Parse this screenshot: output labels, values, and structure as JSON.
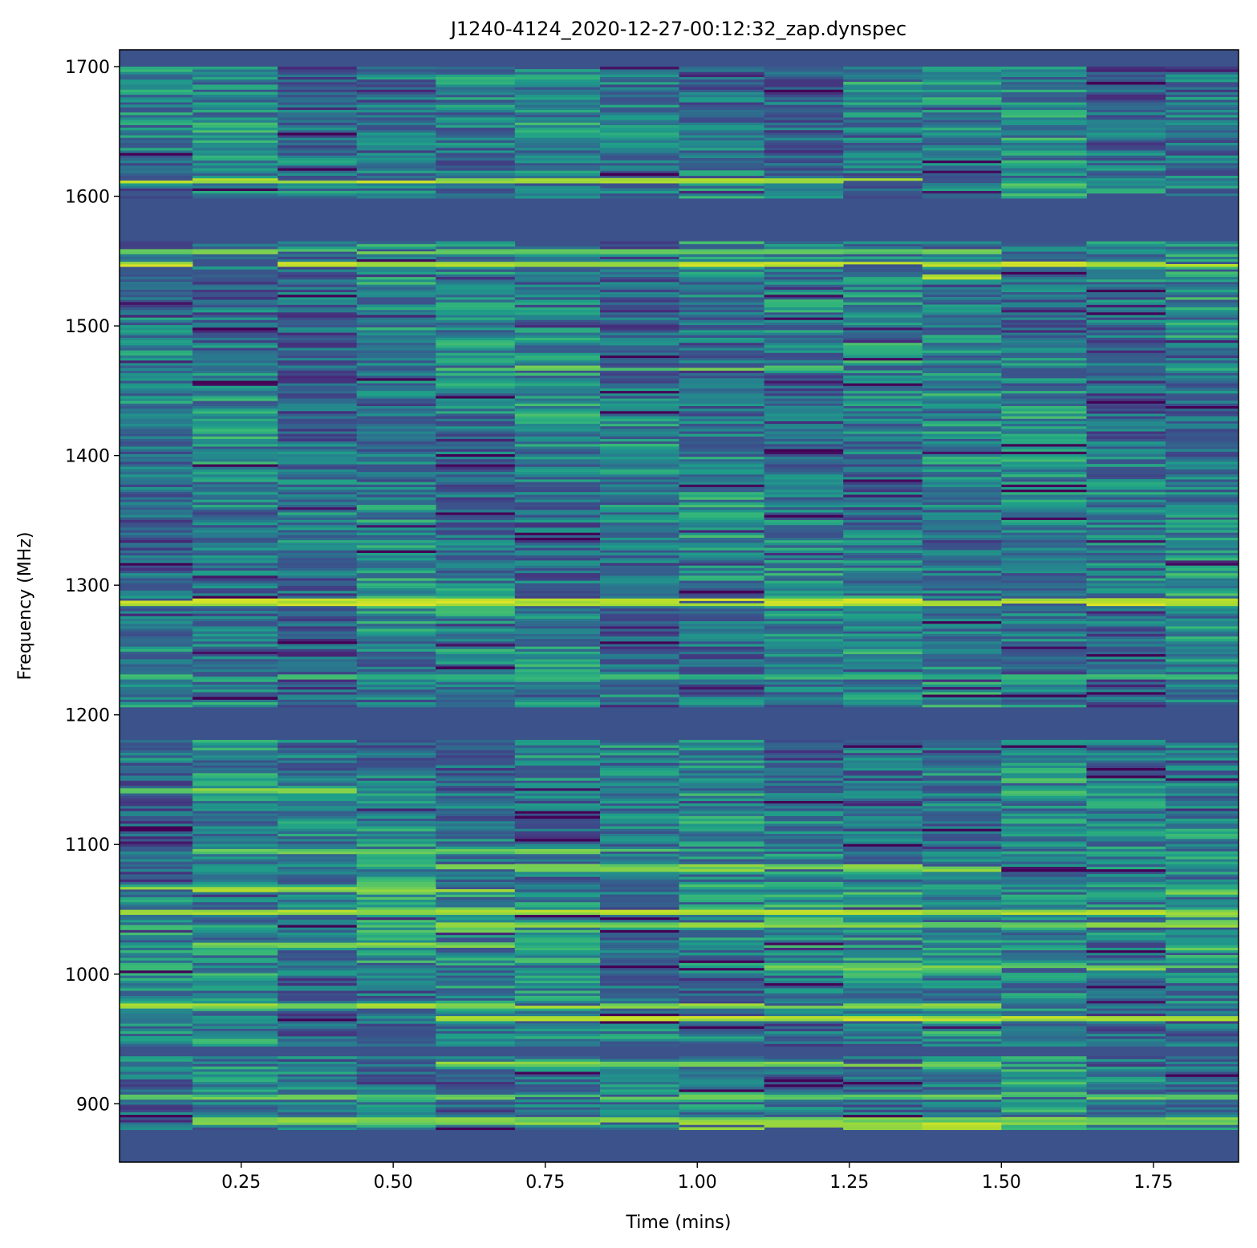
{
  "chart_data": {
    "type": "heatmap",
    "title": "J1240-4124_2020-12-27-00:12:32_zap.dynspec",
    "xlabel": "Time (mins)",
    "ylabel": "Frequency (MHz)",
    "xlim": [
      0.05,
      1.89
    ],
    "ylim": [
      855,
      1713
    ],
    "x_ticks": [
      0.25,
      0.5,
      0.75,
      1.0,
      1.25,
      1.5,
      1.75
    ],
    "x_tick_labels": [
      "0.25",
      "0.50",
      "0.75",
      "1.00",
      "1.25",
      "1.50",
      "1.75"
    ],
    "y_ticks": [
      900,
      1000,
      1100,
      1200,
      1300,
      1400,
      1500,
      1600,
      1700
    ],
    "y_tick_labels": [
      "900",
      "1000",
      "1100",
      "1200",
      "1300",
      "1400",
      "1500",
      "1600",
      "1700"
    ],
    "colormap": "viridis",
    "masked_value_color": "#3b528b",
    "time_bin_edges": [
      0.05,
      0.17,
      0.31,
      0.44,
      0.57,
      0.7,
      0.84,
      0.97,
      1.11,
      1.24,
      1.37,
      1.5,
      1.64,
      1.77,
      1.89
    ],
    "frequency_range_mhz": [
      880,
      1700
    ],
    "masked_frequency_bands_mhz": [
      [
        855,
        880
      ],
      [
        937,
        945
      ],
      [
        1180,
        1207
      ],
      [
        1565,
        1598
      ],
      [
        1700,
        1713
      ]
    ],
    "bright_features": [
      {
        "freq_mhz": 1612,
        "time_range": [
          0.05,
          1.5
        ],
        "level": 0.92
      },
      {
        "freq_mhz": 1557,
        "time_range": [
          0.05,
          1.5
        ],
        "level": 0.82
      },
      {
        "freq_mhz": 1547,
        "time_range": [
          0.05,
          1.89
        ],
        "level": 0.95
      },
      {
        "freq_mhz": 1538,
        "time_range": [
          1.37,
          1.5
        ],
        "level": 0.95
      },
      {
        "freq_mhz": 1467,
        "time_range": [
          0.57,
          1.37
        ],
        "level": 0.8
      },
      {
        "freq_mhz": 1287,
        "time_range": [
          0.05,
          1.89
        ],
        "level": 0.96
      },
      {
        "freq_mhz": 1230,
        "time_range": [
          0.05,
          1.89
        ],
        "level": 0.7
      },
      {
        "freq_mhz": 1142,
        "time_range": [
          0.05,
          0.44
        ],
        "level": 0.85
      },
      {
        "freq_mhz": 1095,
        "time_range": [
          0.17,
          0.97
        ],
        "level": 0.82
      },
      {
        "freq_mhz": 1082,
        "time_range": [
          0.57,
          1.5
        ],
        "level": 0.85
      },
      {
        "freq_mhz": 1066,
        "time_range": [
          0.05,
          0.7
        ],
        "level": 0.9
      },
      {
        "freq_mhz": 1048,
        "time_range": [
          0.05,
          1.89
        ],
        "level": 0.92
      },
      {
        "freq_mhz": 1038,
        "time_range": [
          0.57,
          1.89
        ],
        "level": 0.85
      },
      {
        "freq_mhz": 1022,
        "time_range": [
          0.17,
          0.7
        ],
        "level": 0.85
      },
      {
        "freq_mhz": 1005,
        "time_range": [
          1.11,
          1.89
        ],
        "level": 0.85
      },
      {
        "freq_mhz": 975,
        "time_range": [
          0.05,
          1.5
        ],
        "level": 0.88
      },
      {
        "freq_mhz": 966,
        "time_range": [
          0.57,
          1.89
        ],
        "level": 0.95
      },
      {
        "freq_mhz": 930,
        "time_range": [
          0.57,
          1.5
        ],
        "level": 0.85
      },
      {
        "freq_mhz": 905,
        "time_range": [
          0.05,
          1.89
        ],
        "level": 0.8
      },
      {
        "freq_mhz": 887,
        "time_range": [
          0.17,
          1.89
        ],
        "level": 0.85
      },
      {
        "freq_mhz": 883,
        "time_range": [
          0.97,
          1.5
        ],
        "level": 0.95
      }
    ],
    "grid": false,
    "legend": false
  }
}
